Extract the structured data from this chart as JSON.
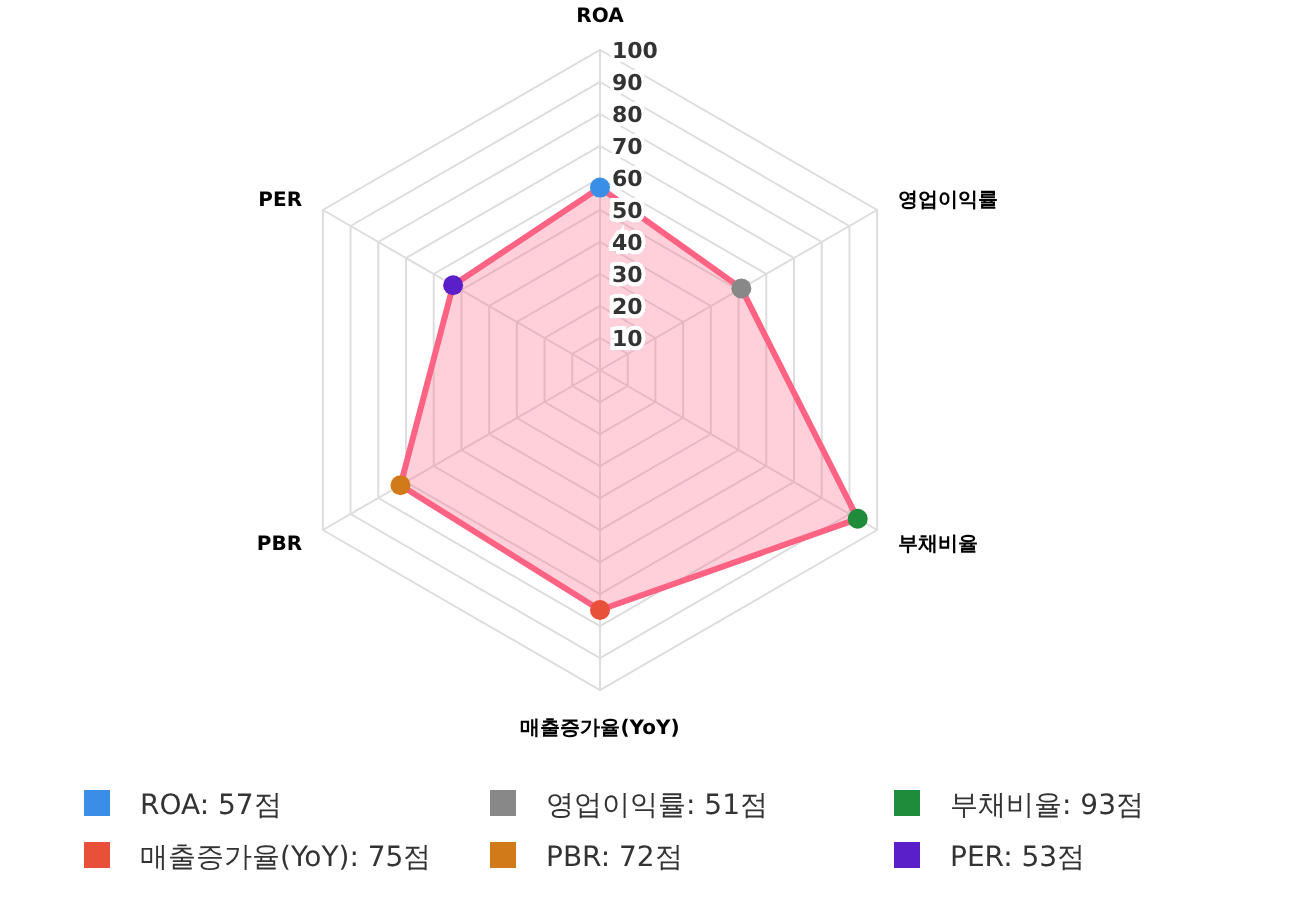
{
  "chart_data": {
    "type": "radar",
    "categories": [
      "ROA",
      "영업이익률",
      "부채비율",
      "매출증가율(YoY)",
      "PBR",
      "PER"
    ],
    "series": [
      {
        "color": "#ff6384",
        "values": [
          57,
          51,
          93,
          75,
          72,
          53
        ],
        "colors": [
          "#3a8ee6",
          "#888888",
          "#1e8c3a",
          "#e8503a",
          "#d07a1a",
          "#5a1fc8"
        ]
      }
    ],
    "annotations": [
      "ROA: 57점",
      "영업이익률: 51점",
      "부채비율: 93점",
      "매출증가율(YoY): 75점",
      "PBR: 72점",
      "PER: 53점"
    ],
    "ylim": [
      0,
      100
    ],
    "yticks": [
      10,
      20,
      30,
      40,
      50,
      60,
      70,
      80,
      90,
      100
    ],
    "grid": true,
    "marker": "circle"
  }
}
